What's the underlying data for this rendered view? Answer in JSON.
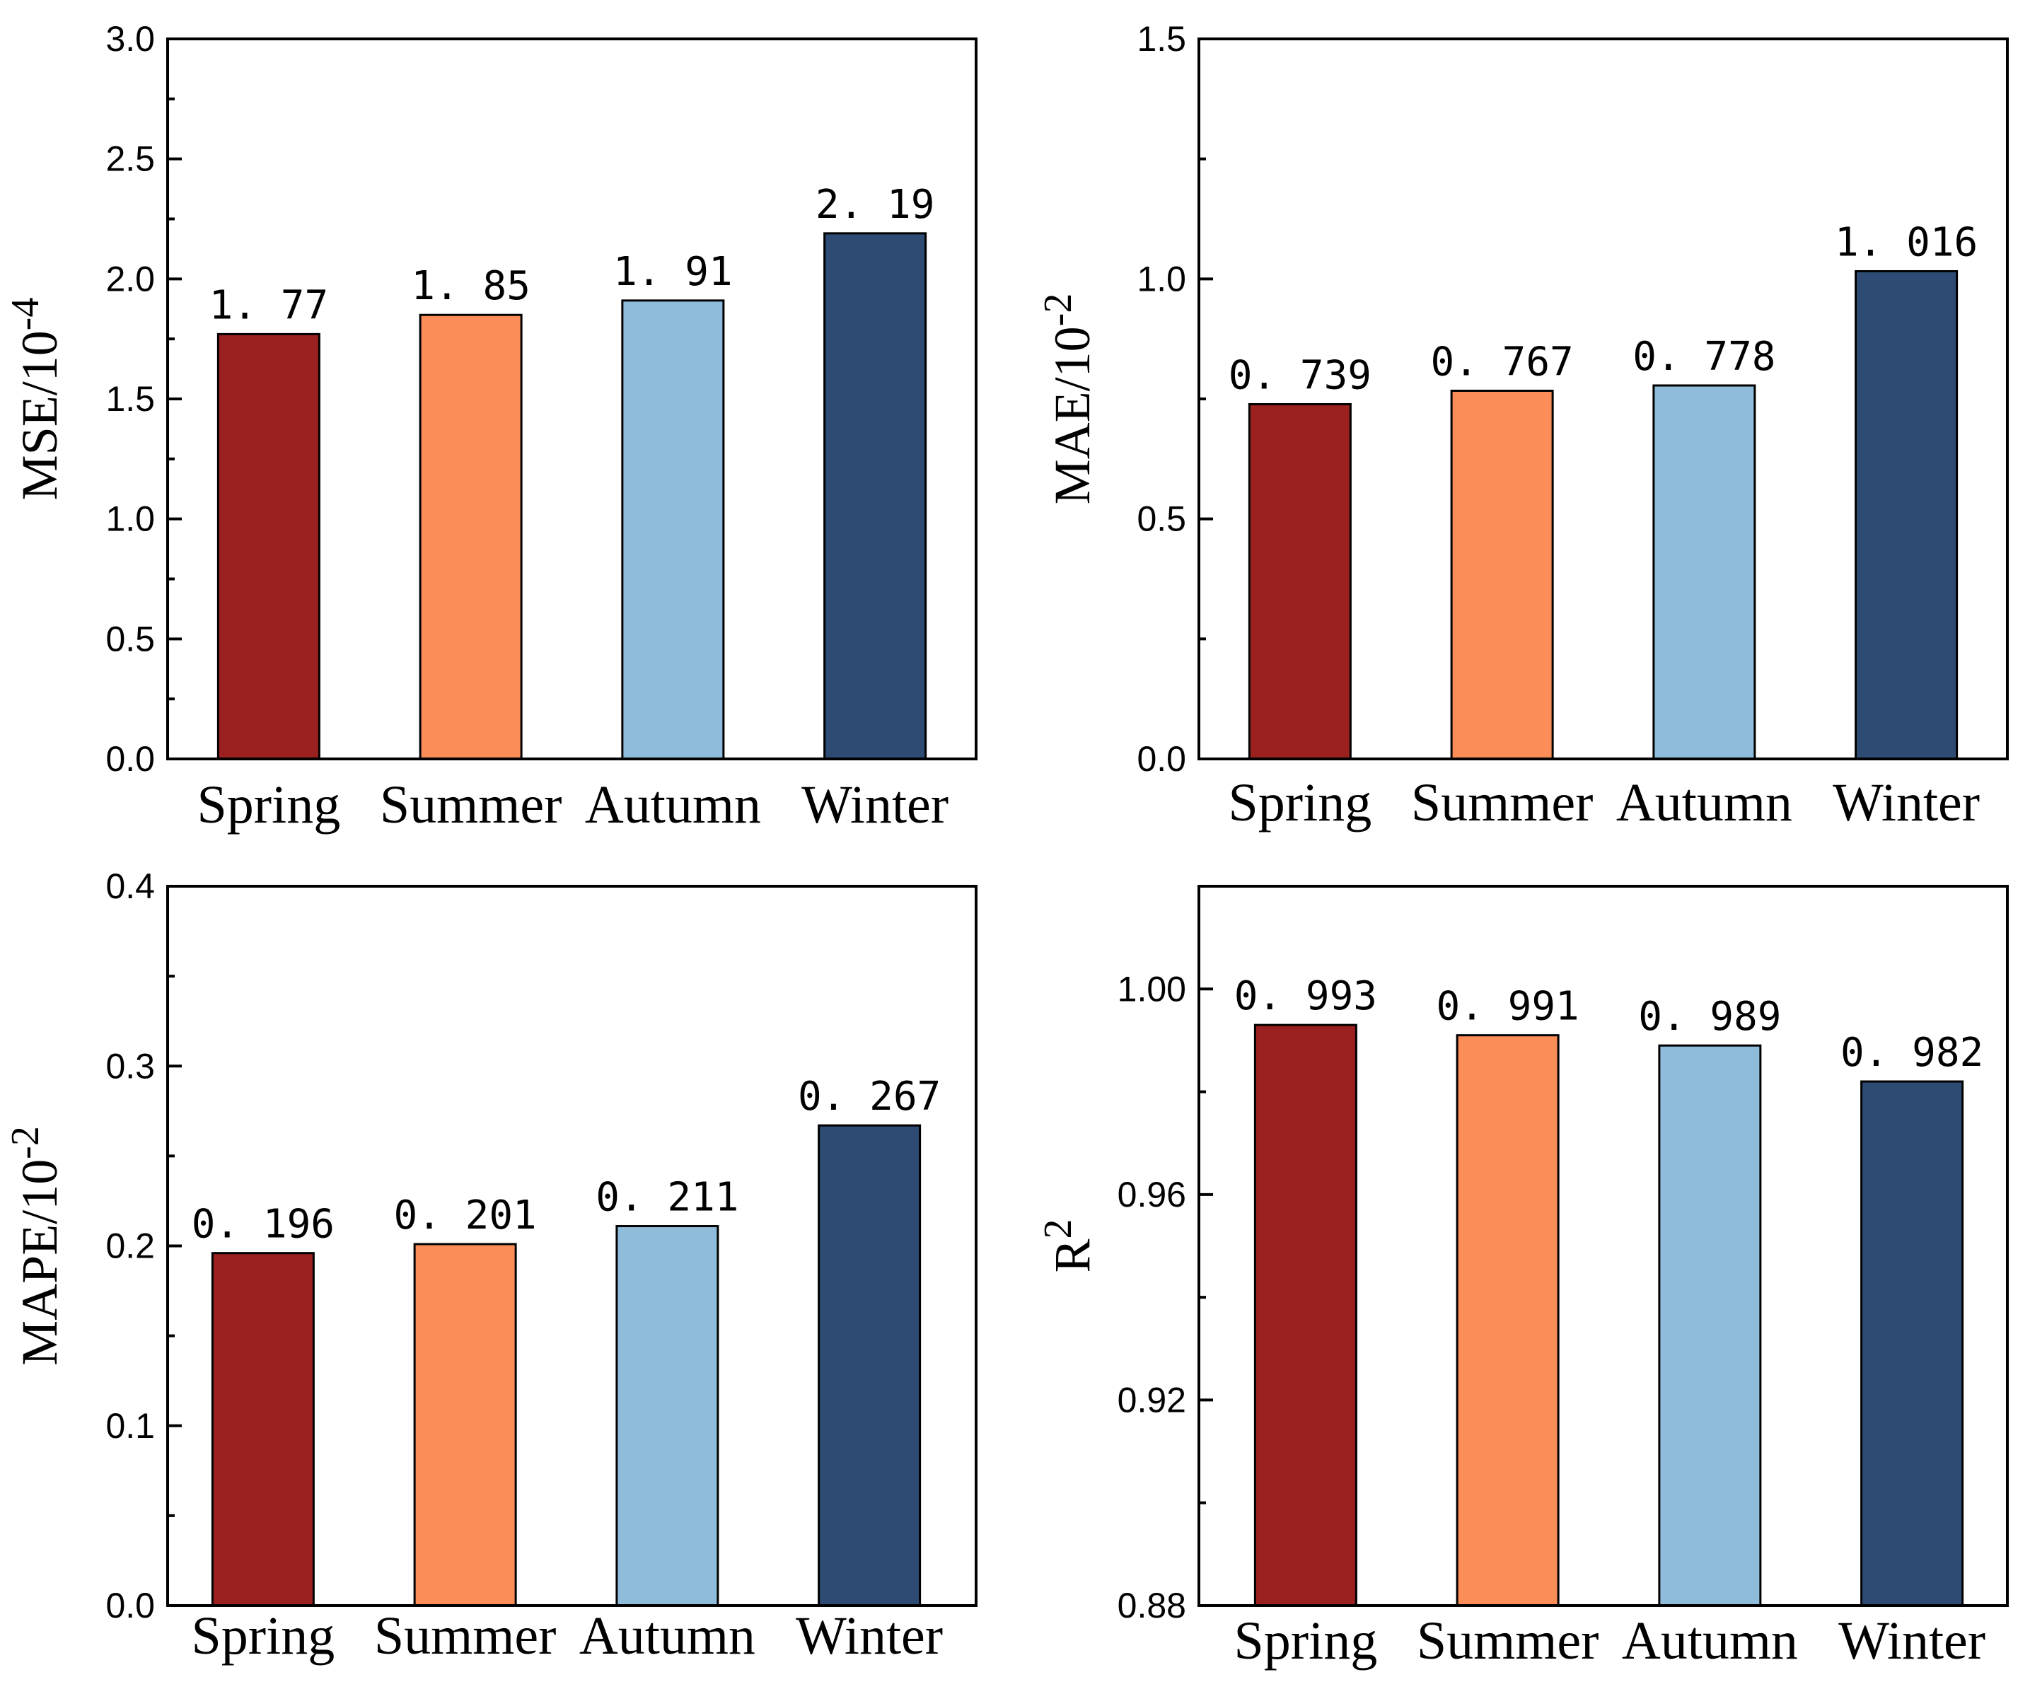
{
  "chart_data": [
    {
      "type": "bar",
      "ylabel_main": "MSE/10",
      "ylabel_sup": "-4",
      "categories": [
        "Spring",
        "Summer",
        "Autumn",
        "Winter"
      ],
      "values": [
        1.77,
        1.85,
        1.91,
        2.19
      ],
      "value_labels": [
        "1. 77",
        "1. 85",
        "1. 91",
        "2. 19"
      ],
      "ylim": [
        0,
        3.0
      ],
      "yticks": [
        0,
        0.5,
        1.0,
        1.5,
        2.0,
        2.5,
        3.0
      ],
      "ytick_labels": [
        "0.0",
        "0.5",
        "1.0",
        "1.5",
        "2.0",
        "2.5",
        "3.0"
      ],
      "minor_step": 0.25,
      "colors": [
        "#9a211f",
        "#fb8e58",
        "#90bcdb",
        "#2e4c73"
      ]
    },
    {
      "type": "bar",
      "ylabel_main": "MAE/10",
      "ylabel_sup": "-2",
      "categories": [
        "Spring",
        "Summer",
        "Autumn",
        "Winter"
      ],
      "values": [
        0.739,
        0.767,
        0.778,
        1.016
      ],
      "value_labels": [
        "0. 739",
        "0. 767",
        "0. 778",
        "1. 016"
      ],
      "ylim": [
        0,
        1.5
      ],
      "yticks": [
        0,
        0.5,
        1.0,
        1.5
      ],
      "ytick_labels": [
        "0.0",
        "0.5",
        "1.0",
        "1.5"
      ],
      "minor_step": 0.25,
      "colors": [
        "#9a211f",
        "#fb8e58",
        "#90bcdb",
        "#2e4c73"
      ]
    },
    {
      "type": "bar",
      "ylabel_main": "MAPE/10",
      "ylabel_sup": "-2",
      "categories": [
        "Spring",
        "Summer",
        "Autumn",
        "Winter"
      ],
      "values": [
        0.196,
        0.201,
        0.211,
        0.267
      ],
      "value_labels": [
        "0. 196",
        "0. 201",
        "0. 211",
        "0. 267"
      ],
      "ylim": [
        0,
        0.4
      ],
      "yticks": [
        0,
        0.1,
        0.2,
        0.3,
        0.4
      ],
      "ytick_labels": [
        "0.0",
        "0.1",
        "0.2",
        "0.3",
        "0.4"
      ],
      "minor_step": 0.05,
      "colors": [
        "#9a211f",
        "#fb8e58",
        "#90bcdb",
        "#2e4c73"
      ]
    },
    {
      "type": "bar",
      "ylabel_main": "R",
      "ylabel_sup": "2",
      "categories": [
        "Spring",
        "Summer",
        "Autumn",
        "Winter"
      ],
      "values": [
        0.993,
        0.991,
        0.989,
        0.982
      ],
      "value_labels": [
        "0. 993",
        "0. 991",
        "0. 989",
        "0. 982"
      ],
      "ylim": [
        0.88,
        1.02
      ],
      "yticks": [
        0.88,
        0.92,
        0.96,
        1.0
      ],
      "ytick_labels": [
        "0.88",
        "0.92",
        "0.96",
        "1.00"
      ],
      "minor_step": 0.02,
      "colors": [
        "#9a211f",
        "#fb8e58",
        "#90bcdb",
        "#2e4c73"
      ]
    }
  ]
}
